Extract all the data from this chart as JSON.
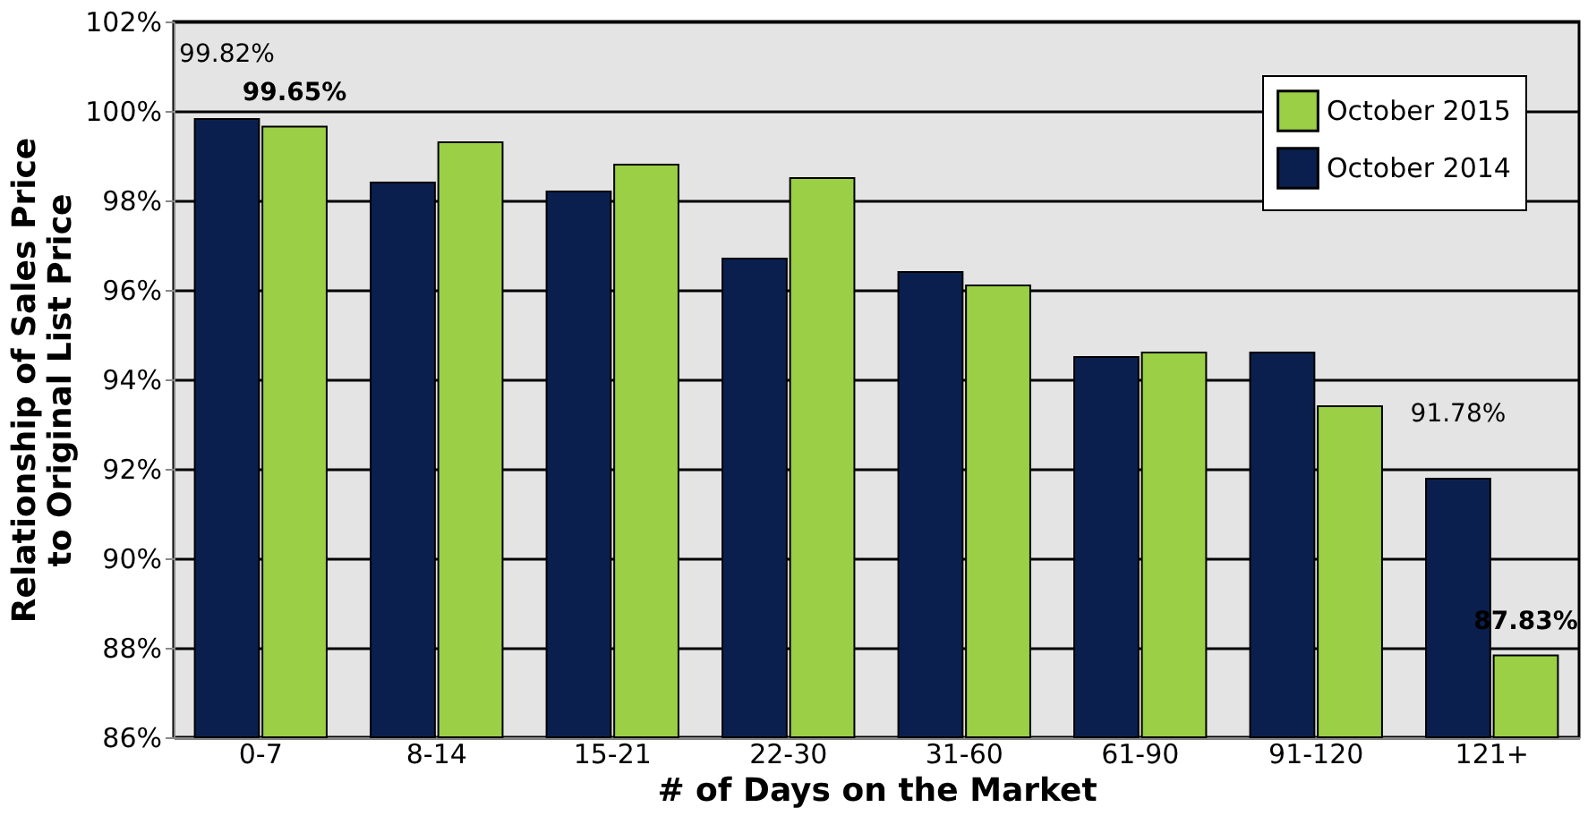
{
  "chart_data": {
    "type": "bar",
    "xlabel": "# of Days on the Market",
    "ylabel": "Relationship of Sales Price\nto Original List Price",
    "categories": [
      "0-7",
      "8-14",
      "15-21",
      "22-30",
      "31-60",
      "61-90",
      "91-120",
      "121+"
    ],
    "series": [
      {
        "name": "October 2014",
        "color": "#0b1f4f",
        "values": [
          99.82,
          98.4,
          98.2,
          96.7,
          96.4,
          94.5,
          94.6,
          91.78
        ],
        "value_labels": [
          "99.82%",
          null,
          null,
          null,
          null,
          null,
          null,
          "91.78%"
        ]
      },
      {
        "name": "October 2015",
        "color": "#9bcf45",
        "values": [
          99.65,
          99.3,
          98.8,
          98.5,
          96.1,
          94.6,
          93.4,
          87.83
        ],
        "value_labels": [
          "99.65%",
          null,
          null,
          null,
          null,
          null,
          null,
          "87.83%"
        ]
      }
    ],
    "ylim": [
      86,
      102
    ],
    "yticks": [
      {
        "value": 86,
        "label": "86%"
      },
      {
        "value": 88,
        "label": "88%"
      },
      {
        "value": 90,
        "label": "90%"
      },
      {
        "value": 92,
        "label": "92%"
      },
      {
        "value": 94,
        "label": "94%"
      },
      {
        "value": 96,
        "label": "96%"
      },
      {
        "value": 98,
        "label": "98%"
      },
      {
        "value": 100,
        "label": "100%"
      },
      {
        "value": 102,
        "label": "102%"
      }
    ],
    "grid": "y",
    "legend": "top right"
  }
}
